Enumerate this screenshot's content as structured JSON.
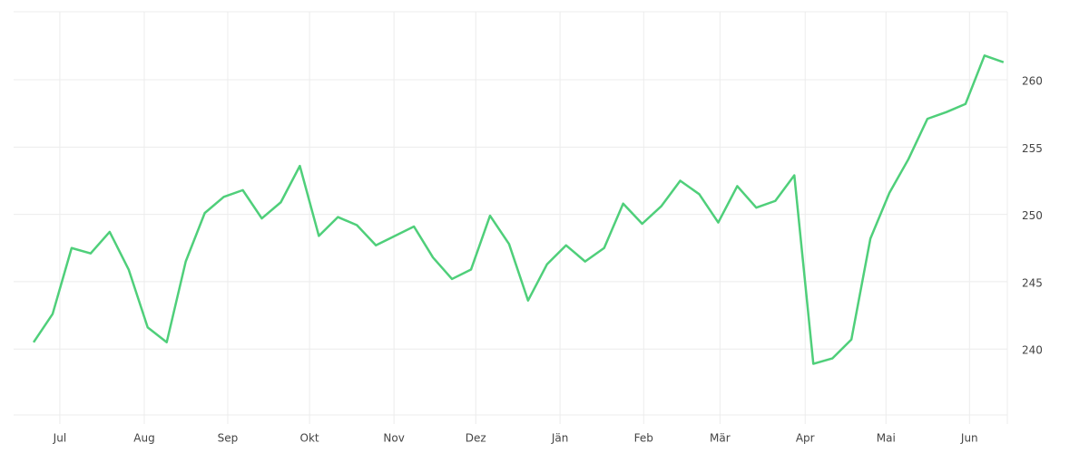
{
  "chart_data": {
    "type": "line",
    "x": [
      0,
      1,
      2,
      3,
      4,
      5,
      6,
      7,
      8,
      9,
      10,
      11,
      12,
      13,
      14,
      15,
      16,
      17,
      18,
      19,
      20,
      21,
      22,
      23,
      24,
      25,
      26,
      27,
      28,
      29,
      30,
      31,
      32,
      33,
      34,
      35,
      36,
      37,
      38,
      39,
      40,
      41,
      42,
      43,
      44,
      45,
      46,
      47,
      48,
      49,
      50,
      51
    ],
    "series": [
      {
        "color": "#4fcf7a",
        "values": [
          240.5,
          242.6,
          247.5,
          247.1,
          248.7,
          245.9,
          241.6,
          240.5,
          246.5,
          250.1,
          251.3,
          251.8,
          249.7,
          250.9,
          253.6,
          248.4,
          249.8,
          249.2,
          247.7,
          248.4,
          249.1,
          246.8,
          245.2,
          245.9,
          249.9,
          247.8,
          243.6,
          246.3,
          247.7,
          246.5,
          247.5,
          250.8,
          249.3,
          250.6,
          252.5,
          251.5,
          249.4,
          252.1,
          250.5,
          251.0,
          252.9,
          238.9,
          239.3,
          240.7,
          248.2,
          251.6,
          254.1,
          257.1,
          257.6,
          258.2,
          261.8,
          261.3
        ]
      }
    ],
    "xlim": [
      -1.05,
      51.2
    ],
    "xticks": [
      {
        "value": 1.38,
        "label": "Jul"
      },
      {
        "value": 5.82,
        "label": "Aug"
      },
      {
        "value": 10.21,
        "label": "Sep"
      },
      {
        "value": 14.51,
        "label": "Okt"
      },
      {
        "value": 18.95,
        "label": "Nov"
      },
      {
        "value": 23.25,
        "label": "Dez"
      },
      {
        "value": 27.68,
        "label": "Jän"
      },
      {
        "value": 32.08,
        "label": "Feb"
      },
      {
        "value": 36.09,
        "label": "Mär"
      },
      {
        "value": 40.57,
        "label": "Apr"
      },
      {
        "value": 44.82,
        "label": "Mai"
      },
      {
        "value": 49.21,
        "label": "Jun"
      }
    ],
    "ylim": [
      235.1,
      265.05
    ],
    "yticks": [
      240,
      245,
      250,
      255,
      260
    ],
    "grid": true
  }
}
